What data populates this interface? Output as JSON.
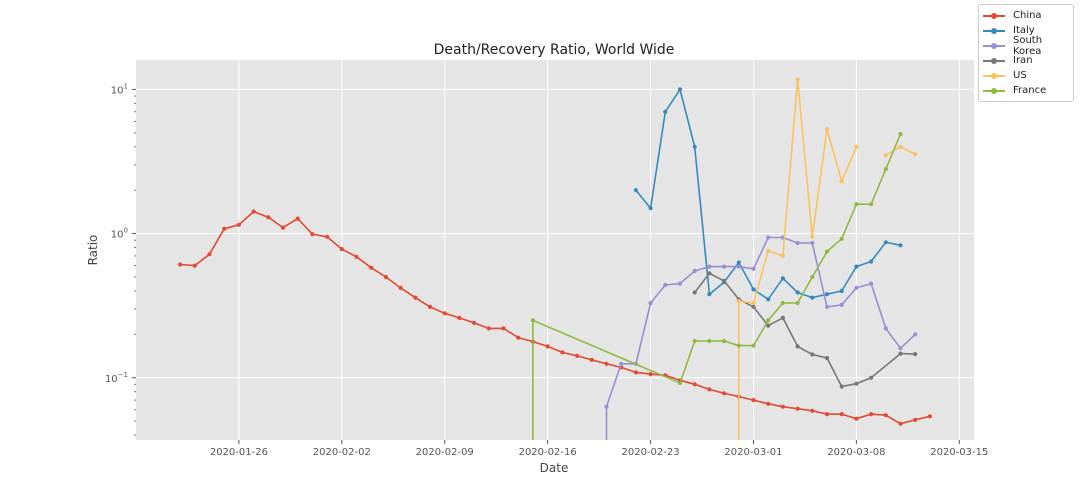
{
  "chart_data": {
    "type": "line",
    "title": "Death/Recovery Ratio, World Wide",
    "xlabel": "Date",
    "ylabel": "Ratio",
    "yscale": "log",
    "ylim": [
      0.037,
      16
    ],
    "xlim": [
      "2020-01-19",
      "2020-03-16"
    ],
    "x_ticks": [
      "2020-01-26",
      "2020-02-02",
      "2020-02-09",
      "2020-02-16",
      "2020-02-23",
      "2020-03-01",
      "2020-03-08",
      "2020-03-15"
    ],
    "y_ticks": [
      {
        "value": 0.1,
        "base": "10",
        "exp": "−1"
      },
      {
        "value": 1,
        "base": "10",
        "exp": "0"
      },
      {
        "value": 10,
        "base": "10",
        "exp": "1"
      }
    ],
    "grid": true,
    "legend": "top-right",
    "background": "#e5e5e5",
    "series": [
      {
        "name": "China",
        "color": "#e24a33",
        "points": [
          [
            "2020-01-22",
            0.61
          ],
          [
            "2020-01-23",
            0.6
          ],
          [
            "2020-01-24",
            0.72
          ],
          [
            "2020-01-25",
            1.08
          ],
          [
            "2020-01-26",
            1.15
          ],
          [
            "2020-01-27",
            1.42
          ],
          [
            "2020-01-28",
            1.3
          ],
          [
            "2020-01-29",
            1.1
          ],
          [
            "2020-01-30",
            1.27
          ],
          [
            "2020-01-31",
            0.99
          ],
          [
            "2020-02-01",
            0.95
          ],
          [
            "2020-02-02",
            0.78
          ],
          [
            "2020-02-03",
            0.69
          ],
          [
            "2020-02-04",
            0.58
          ],
          [
            "2020-02-05",
            0.5
          ],
          [
            "2020-02-06",
            0.42
          ],
          [
            "2020-02-07",
            0.36
          ],
          [
            "2020-02-08",
            0.31
          ],
          [
            "2020-02-09",
            0.28
          ],
          [
            "2020-02-10",
            0.26
          ],
          [
            "2020-02-11",
            0.24
          ],
          [
            "2020-02-12",
            0.22
          ],
          [
            "2020-02-13",
            0.22
          ],
          [
            "2020-02-14",
            0.19
          ],
          [
            "2020-02-15",
            0.178
          ],
          [
            "2020-02-16",
            0.165
          ],
          [
            "2020-02-17",
            0.15
          ],
          [
            "2020-02-18",
            0.142
          ],
          [
            "2020-02-19",
            0.133
          ],
          [
            "2020-02-20",
            0.125
          ],
          [
            "2020-02-21",
            0.118
          ],
          [
            "2020-02-22",
            0.109
          ],
          [
            "2020-02-23",
            0.106
          ],
          [
            "2020-02-24",
            0.104
          ],
          [
            "2020-02-25",
            0.096
          ],
          [
            "2020-02-26",
            0.09
          ],
          [
            "2020-02-27",
            0.083
          ],
          [
            "2020-02-28",
            0.078
          ],
          [
            "2020-02-29",
            0.074
          ],
          [
            "2020-03-01",
            0.07
          ],
          [
            "2020-03-02",
            0.066
          ],
          [
            "2020-03-03",
            0.063
          ],
          [
            "2020-03-04",
            0.061
          ],
          [
            "2020-03-05",
            0.059
          ],
          [
            "2020-03-06",
            0.056
          ],
          [
            "2020-03-07",
            0.056
          ],
          [
            "2020-03-08",
            0.052
          ],
          [
            "2020-03-09",
            0.056
          ],
          [
            "2020-03-10",
            0.055
          ],
          [
            "2020-03-11",
            0.048
          ],
          [
            "2020-03-12",
            0.051
          ],
          [
            "2020-03-13",
            0.054
          ]
        ]
      },
      {
        "name": "Italy",
        "color": "#348abd",
        "points": [
          [
            "2020-02-22",
            2.0
          ],
          [
            "2020-02-23",
            1.5
          ],
          [
            "2020-02-24",
            7.0
          ],
          [
            "2020-02-25",
            10.0
          ],
          [
            "2020-02-26",
            4.0
          ],
          [
            "2020-02-27",
            0.38
          ],
          [
            "2020-02-28",
            0.46
          ],
          [
            "2020-02-29",
            0.63
          ],
          [
            "2020-03-01",
            0.41
          ],
          [
            "2020-03-02",
            0.35
          ],
          [
            "2020-03-03",
            0.49
          ],
          [
            "2020-03-04",
            0.39
          ],
          [
            "2020-03-05",
            0.36
          ],
          [
            "2020-03-06",
            0.38
          ],
          [
            "2020-03-07",
            0.4
          ],
          [
            "2020-03-08",
            0.59
          ],
          [
            "2020-03-09",
            0.64
          ],
          [
            "2020-03-10",
            0.87
          ],
          [
            "2020-03-11",
            0.83
          ]
        ]
      },
      {
        "name": "South Korea",
        "color": "#988ed5",
        "points": [
          [
            "2020-02-20",
            0.0
          ],
          [
            "2020-02-20",
            0.063
          ],
          [
            "2020-02-21",
            0.125
          ],
          [
            "2020-02-22",
            0.125
          ],
          [
            "2020-02-23",
            0.33
          ],
          [
            "2020-02-24",
            0.44
          ],
          [
            "2020-02-25",
            0.45
          ],
          [
            "2020-02-26",
            0.55
          ],
          [
            "2020-02-27",
            0.59
          ],
          [
            "2020-02-28",
            0.59
          ],
          [
            "2020-02-29",
            0.59
          ],
          [
            "2020-03-01",
            0.57
          ],
          [
            "2020-03-02",
            0.94
          ],
          [
            "2020-03-03",
            0.94
          ],
          [
            "2020-03-04",
            0.86
          ],
          [
            "2020-03-05",
            0.86
          ],
          [
            "2020-03-06",
            0.31
          ],
          [
            "2020-03-07",
            0.32
          ],
          [
            "2020-03-08",
            0.42
          ],
          [
            "2020-03-09",
            0.45
          ],
          [
            "2020-03-10",
            0.22
          ],
          [
            "2020-03-11",
            0.16
          ],
          [
            "2020-03-12",
            0.2
          ]
        ]
      },
      {
        "name": "Iran",
        "color": "#777777",
        "points": [
          [
            "2020-02-26",
            0.39
          ],
          [
            "2020-02-27",
            0.53
          ],
          [
            "2020-02-28",
            0.47
          ],
          [
            "2020-02-29",
            0.35
          ],
          [
            "2020-03-01",
            0.31
          ],
          [
            "2020-03-02",
            0.23
          ],
          [
            "2020-03-03",
            0.26
          ],
          [
            "2020-03-04",
            0.165
          ],
          [
            "2020-03-05",
            0.145
          ],
          [
            "2020-03-06",
            0.137
          ],
          [
            "2020-03-07",
            0.087
          ],
          [
            "2020-03-08",
            0.091
          ],
          [
            "2020-03-09",
            0.1
          ],
          [
            "2020-03-11",
            0.147
          ],
          [
            "2020-03-12",
            0.146
          ]
        ]
      },
      {
        "name": "US",
        "color": "#fbc15e",
        "segments": [
          [
            [
              "2020-02-29",
              0.0
            ],
            [
              "2020-02-29",
              0.34
            ],
            [
              "2020-03-01",
              0.33
            ],
            [
              "2020-03-02",
              0.76
            ],
            [
              "2020-03-03",
              0.7
            ],
            [
              "2020-03-04",
              11.7
            ],
            [
              "2020-03-05",
              0.95
            ],
            [
              "2020-03-06",
              5.3
            ],
            [
              "2020-03-07",
              2.3
            ],
            [
              "2020-03-08",
              4.0
            ]
          ],
          [
            [
              "2020-03-10",
              3.5
            ],
            [
              "2020-03-11",
              4.0
            ],
            [
              "2020-03-12",
              3.55
            ]
          ]
        ]
      },
      {
        "name": "France",
        "color": "#8eba42",
        "points": [
          [
            "2020-02-15",
            0.0
          ],
          [
            "2020-02-15",
            0.25
          ],
          [
            "2020-02-25",
            0.092
          ],
          [
            "2020-02-26",
            0.18
          ],
          [
            "2020-02-27",
            0.18
          ],
          [
            "2020-02-28",
            0.18
          ],
          [
            "2020-02-29",
            0.167
          ],
          [
            "2020-03-01",
            0.167
          ],
          [
            "2020-03-02",
            0.25
          ],
          [
            "2020-03-03",
            0.33
          ],
          [
            "2020-03-04",
            0.33
          ],
          [
            "2020-03-05",
            0.5
          ],
          [
            "2020-03-06",
            0.75
          ],
          [
            "2020-03-07",
            0.92
          ],
          [
            "2020-03-08",
            1.6
          ],
          [
            "2020-03-09",
            1.6
          ],
          [
            "2020-03-10",
            2.8
          ],
          [
            "2020-03-11",
            4.9
          ]
        ]
      }
    ]
  }
}
